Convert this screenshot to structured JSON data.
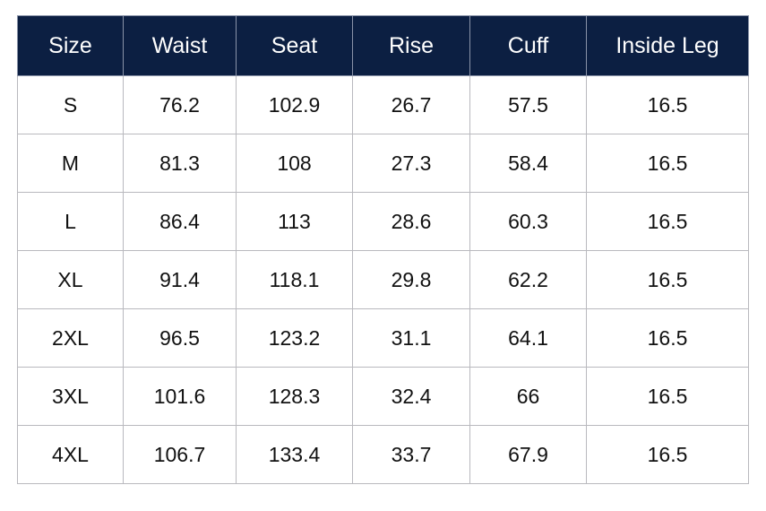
{
  "columns": [
    "Size",
    "Waist",
    "Seat",
    "Rise",
    "Cuff",
    "Inside Leg"
  ],
  "rows": [
    [
      "S",
      "76.2",
      "102.9",
      "26.7",
      "57.5",
      "16.5"
    ],
    [
      "M",
      "81.3",
      "108",
      "27.3",
      "58.4",
      "16.5"
    ],
    [
      "L",
      "86.4",
      "113",
      "28.6",
      "60.3",
      "16.5"
    ],
    [
      "XL",
      "91.4",
      "118.1",
      "29.8",
      "62.2",
      "16.5"
    ],
    [
      "2XL",
      "96.5",
      "123.2",
      "31.1",
      "64.1",
      "16.5"
    ],
    [
      "3XL",
      "101.6",
      "128.3",
      "32.4",
      "66",
      "16.5"
    ],
    [
      "4XL",
      "106.7",
      "133.4",
      "33.7",
      "67.9",
      "16.5"
    ]
  ],
  "colors": {
    "header_background": "#0c1f42",
    "header_text": "#ffffff",
    "border": "#b9b9be",
    "cell_text": "#111111"
  }
}
